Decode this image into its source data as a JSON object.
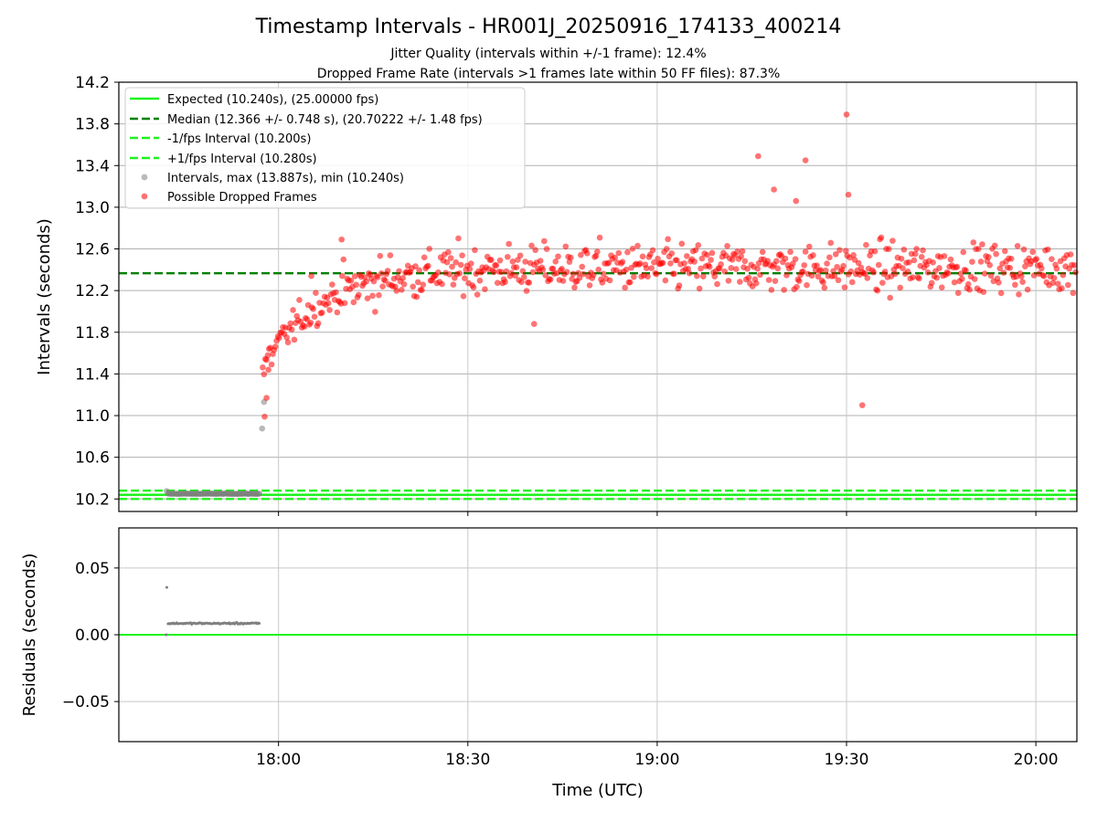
{
  "chart_data": [
    {
      "type": "scatter",
      "title": "Timestamp Intervals - HR001J_20250916_174133_400214",
      "subtitle_lines": [
        "Jitter Quality (intervals within +/-1 frame): 12.4%",
        "Dropped Frame Rate (intervals >1 frames late within 50 FF files): 87.3%"
      ],
      "ylabel": "Intervals (seconds)",
      "ylim": [
        10.08,
        14.2
      ],
      "yticks": [
        "10.2",
        "10.6",
        "11.0",
        "11.4",
        "11.8",
        "12.2",
        "12.6",
        "13.0",
        "13.4",
        "13.8",
        "14.2"
      ],
      "xlim_minutes": [
        -25.3,
        126.5
      ],
      "grid": true,
      "legend_position": "upper-left",
      "legend": [
        {
          "label": "Expected (10.240s), (25.00000 fps)",
          "style": "line",
          "color": "#1ef21e"
        },
        {
          "label": "Median (12.366 +/- 0.748 s), (20.70222 +/- 1.48 fps)",
          "style": "dashed",
          "color": "#008000"
        },
        {
          "label": "-1/fps Interval (10.200s)",
          "style": "dashed",
          "color": "#1ef21e"
        },
        {
          "label": "+1/fps Interval (10.280s)",
          "style": "dashed",
          "color": "#1ef21e"
        },
        {
          "label": "Intervals, max (13.887s), min (10.240s)",
          "style": "point",
          "color": "#808080"
        },
        {
          "label": "Possible Dropped Frames",
          "style": "point",
          "color": "#ff0000"
        }
      ],
      "reference_lines": [
        {
          "name": "expected",
          "value": 10.24,
          "color": "#1ef21e",
          "style": "solid"
        },
        {
          "name": "median",
          "value": 12.366,
          "color": "#008000",
          "style": "dashed"
        },
        {
          "name": "minus-1-fps",
          "value": 10.2,
          "color": "#1ef21e",
          "style": "dashed"
        },
        {
          "name": "plus-1-fps",
          "value": 10.28,
          "color": "#1ef21e",
          "style": "dashed"
        }
      ],
      "series": [
        {
          "name": "Intervals (normal)",
          "color": "#808080",
          "x_start_minutes": -17.5,
          "x_end_minutes": -2.9,
          "y_value": 10.25,
          "outliers": [
            [
              -17.7,
              10.276
            ],
            [
              -2.6,
              10.876
            ],
            [
              -2.3,
              11.131
            ]
          ]
        },
        {
          "name": "Possible Dropped Frames",
          "color": "#ff0000",
          "x_range_minutes": [
            -2.5,
            126.5
          ],
          "curve": {
            "start": 11.45,
            "asymptote": 12.42,
            "tau_minutes": 9
          },
          "noise_sd": 0.16,
          "named_points": [
            [
              -2.2,
              10.99
            ],
            [
              -1.9,
              11.17
            ],
            [
              -1.6,
              11.44
            ],
            [
              5.2,
              12.34
            ],
            [
              10.0,
              12.69
            ],
            [
              40.5,
              11.88
            ],
            [
              76.0,
              13.49
            ],
            [
              78.5,
              13.17
            ],
            [
              82.0,
              13.06
            ],
            [
              83.5,
              13.45
            ],
            [
              90.0,
              13.89
            ],
            [
              90.3,
              13.12
            ],
            [
              92.5,
              11.1
            ]
          ]
        }
      ]
    },
    {
      "type": "scatter",
      "ylabel": "Residuals (seconds)",
      "xlabel": "Time (UTC)",
      "ylim": [
        -0.08,
        0.08
      ],
      "yticks": [
        "−0.05",
        "0.00",
        "0.05"
      ],
      "ytick_values": [
        -0.05,
        0.0,
        0.05
      ],
      "xticks": [
        "18:00",
        "18:30",
        "19:00",
        "19:30",
        "20:00"
      ],
      "xtick_minutes": [
        0,
        30,
        60,
        90,
        120
      ],
      "grid": true,
      "zero_line_color": "#1ef21e",
      "series": [
        {
          "name": "Residuals",
          "color": "#808080",
          "x_start_minutes": -17.5,
          "x_end_minutes": -2.9,
          "y_value": 0.0085,
          "outliers": [
            [
              -17.7,
              0.0355
            ],
            [
              -17.8,
              0.0
            ]
          ]
        }
      ]
    }
  ]
}
